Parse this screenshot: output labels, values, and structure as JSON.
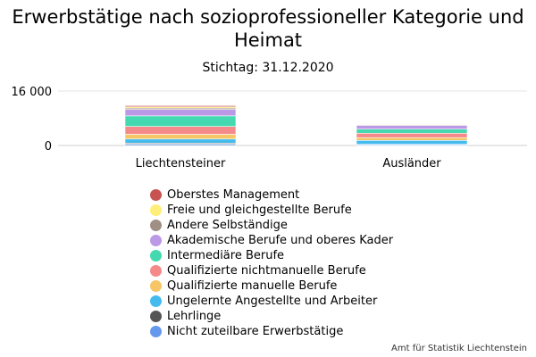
{
  "chart_data": {
    "type": "bar",
    "stacked": true,
    "title": "Erwerbstätige nach sozioprofessioneller Kategorie und Heimat",
    "subtitle": "Stichtag: 31.12.2020",
    "categories": [
      "Liechtensteiner",
      "Ausländer"
    ],
    "ylim": [
      0,
      16000
    ],
    "yticks": [
      {
        "value": 0,
        "label": "0"
      },
      {
        "value": 16000,
        "label": "16 000"
      }
    ],
    "series": [
      {
        "name": "Nicht zuteilbare Erwerbstätige",
        "color": "#6699ee",
        "values": [
          400,
          250
        ]
      },
      {
        "name": "Lehrlinge",
        "color": "#555555",
        "values": [
          300,
          100
        ]
      },
      {
        "name": "Ungelernte Angestellte und Arbeiter",
        "color": "#44bbee",
        "values": [
          1200,
          1150
        ]
      },
      {
        "name": "Qualifizierte manuelle Berufe",
        "color": "#f5c566",
        "values": [
          1400,
          800
        ]
      },
      {
        "name": "Qualifizierte nichtmanuelle Berufe",
        "color": "#f58a8a",
        "values": [
          2300,
          1300
        ]
      },
      {
        "name": "Intermediäre Berufe",
        "color": "#44d9b0",
        "values": [
          3100,
          1200
        ]
      },
      {
        "name": "Akademische Berufe und oberes Kader",
        "color": "#bb99e6",
        "values": [
          1900,
          1100
        ]
      },
      {
        "name": "Andere Selbständige",
        "color": "#a08f85",
        "values": [
          400,
          200
        ]
      },
      {
        "name": "Freie und gleichgestellte Berufe",
        "color": "#ffee77",
        "values": [
          350,
          200
        ]
      },
      {
        "name": "Oberstes Management",
        "color": "#c85252",
        "values": [
          350,
          150
        ]
      }
    ],
    "legend_position": "bottom",
    "legend_order": [
      "Oberstes Management",
      "Freie und gleichgestellte Berufe",
      "Andere Selbständige",
      "Akademische Berufe und oberes Kader",
      "Intermediäre Berufe",
      "Qualifizierte nichtmanuelle Berufe",
      "Qualifizierte manuelle Berufe",
      "Ungelernte Angestellte und Arbeiter",
      "Lehrlinge",
      "Nicht zuteilbare Erwerbstätige"
    ],
    "grid": true
  },
  "credits": "Amt für Statistik Liechtenstein"
}
